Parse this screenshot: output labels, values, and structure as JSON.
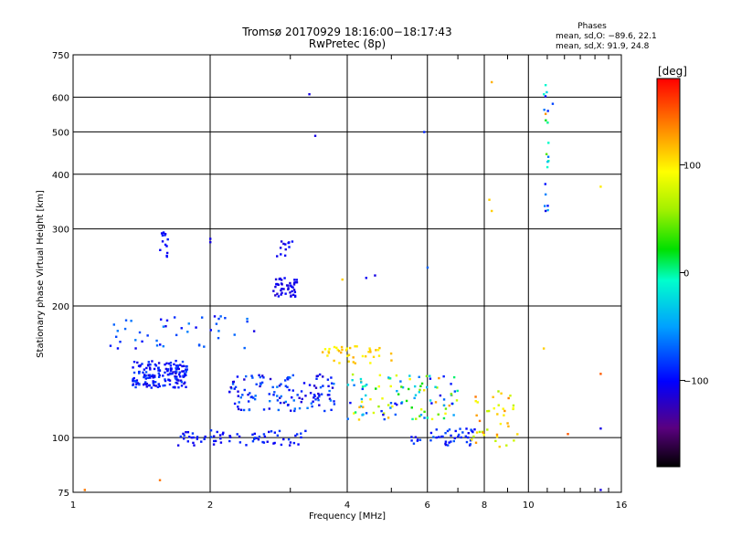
{
  "chart_data": {
    "type": "scatter",
    "title": "Tromsø 20170929 18:16:00−18:17:43",
    "subtitle": "RwPretec (8p)",
    "xlabel": "Frequency [MHz]",
    "ylabel": "Stationary phase Virtual Height [km]",
    "x_scale": "log",
    "y_scale": "log",
    "xlim": [
      1,
      16
    ],
    "ylim": [
      75,
      750
    ],
    "x_ticks": [
      1,
      2,
      4,
      6,
      8,
      10,
      16
    ],
    "x_tick_labels": [
      "1",
      "2",
      "4",
      "6",
      "8",
      "10",
      "16"
    ],
    "y_ticks": [
      75,
      100,
      200,
      300,
      400,
      500,
      600,
      750
    ],
    "y_tick_labels": [
      "75",
      "100",
      "200",
      "300",
      "400",
      "500",
      "600",
      "750"
    ],
    "grid": true,
    "stats": {
      "header": "Phases",
      "line1": "mean, sd,O: −89.6, 22.1",
      "line2": "mean, sd,X:  91.9, 24.8"
    },
    "colorbar": {
      "label": "[deg]",
      "range": [
        -180,
        180
      ],
      "ticks": [
        100,
        0,
        -100
      ],
      "tick_labels": [
        "100",
        "0",
        "−100"
      ],
      "colormap": "rainbow"
    },
    "clusters": [
      {
        "x": [
          1.35,
          1.78
        ],
        "y": [
          130,
          150
        ],
        "n": 170,
        "phase": [
          -115,
          -75
        ]
      },
      {
        "x": [
          1.55,
          1.62
        ],
        "y": [
          255,
          300
        ],
        "n": 14,
        "phase": [
          -110,
          -90
        ]
      },
      {
        "x": [
          2.75,
          3.1
        ],
        "y": [
          210,
          232
        ],
        "n": 45,
        "phase": [
          -120,
          -100
        ]
      },
      {
        "x": [
          2.8,
          3.05
        ],
        "y": [
          260,
          285
        ],
        "n": 12,
        "phase": [
          -115,
          -95
        ]
      },
      {
        "x": [
          1.7,
          3.3
        ],
        "y": [
          96,
          104
        ],
        "n": 70,
        "phase": [
          -110,
          -80
        ]
      },
      {
        "x": [
          2.2,
          3.8
        ],
        "y": [
          115,
          140
        ],
        "n": 130,
        "phase": [
          -120,
          -60
        ]
      },
      {
        "x": [
          3.5,
          5.0
        ],
        "y": [
          148,
          162
        ],
        "n": 40,
        "phase": [
          90,
          125
        ]
      },
      {
        "x": [
          4.0,
          7.0
        ],
        "y": [
          110,
          140
        ],
        "n": 110,
        "phase": [
          -110,
          130
        ]
      },
      {
        "x": [
          5.5,
          7.8
        ],
        "y": [
          96,
          105
        ],
        "n": 45,
        "phase": [
          -110,
          -70
        ]
      },
      {
        "x": [
          7.5,
          9.5
        ],
        "y": [
          95,
          130
        ],
        "n": 40,
        "phase": [
          60,
          140
        ]
      },
      {
        "x": [
          10.8,
          11.1
        ],
        "y": [
          320,
          620
        ],
        "n": 16,
        "phase": [
          -110,
          20
        ]
      },
      {
        "x": [
          1.2,
          2.5
        ],
        "y": [
          160,
          190
        ],
        "n": 45,
        "phase": [
          -110,
          -60
        ]
      }
    ],
    "points": [
      {
        "x": 3.3,
        "y": 610,
        "phase": -110
      },
      {
        "x": 3.4,
        "y": 490,
        "phase": -110
      },
      {
        "x": 8.3,
        "y": 650,
        "phase": 120
      },
      {
        "x": 8.2,
        "y": 350,
        "phase": 110
      },
      {
        "x": 8.3,
        "y": 330,
        "phase": 110
      },
      {
        "x": 10.9,
        "y": 640,
        "phase": -10
      },
      {
        "x": 11.3,
        "y": 580,
        "phase": -80
      },
      {
        "x": 10.9,
        "y": 550,
        "phase": 130
      },
      {
        "x": 10.95,
        "y": 445,
        "phase": 40
      },
      {
        "x": 10.9,
        "y": 360,
        "phase": -60
      },
      {
        "x": 10.9,
        "y": 330,
        "phase": -110
      },
      {
        "x": 14.4,
        "y": 375,
        "phase": 100
      },
      {
        "x": 5.9,
        "y": 500,
        "phase": -90
      },
      {
        "x": 6.0,
        "y": 245,
        "phase": -70
      },
      {
        "x": 4.6,
        "y": 235,
        "phase": -110
      },
      {
        "x": 4.4,
        "y": 232,
        "phase": -105
      },
      {
        "x": 3.9,
        "y": 230,
        "phase": 110
      },
      {
        "x": 2.0,
        "y": 285,
        "phase": -110
      },
      {
        "x": 2.0,
        "y": 280,
        "phase": -110
      },
      {
        "x": 1.06,
        "y": 76,
        "phase": 140
      },
      {
        "x": 1.55,
        "y": 80,
        "phase": 140
      },
      {
        "x": 14.4,
        "y": 76,
        "phase": -110
      },
      {
        "x": 14.4,
        "y": 105,
        "phase": -110
      },
      {
        "x": 14.4,
        "y": 140,
        "phase": 150
      },
      {
        "x": 12.2,
        "y": 102,
        "phase": 150
      },
      {
        "x": 10.8,
        "y": 160,
        "phase": 110
      }
    ]
  }
}
